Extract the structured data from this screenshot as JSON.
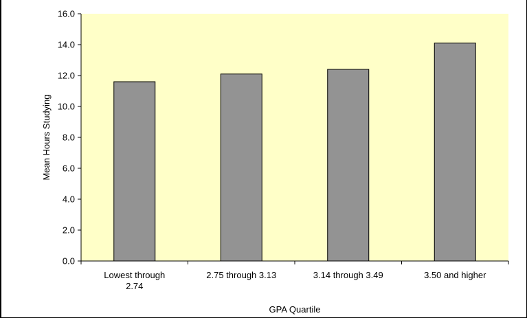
{
  "chart_data": {
    "type": "bar",
    "xlabel": "GPA Quartile",
    "ylabel": "Mean Hours Studying",
    "categories": [
      [
        "Lowest through",
        "2.74"
      ],
      [
        "2.75 through 3.13"
      ],
      [
        "3.14 through 3.49"
      ],
      [
        "3.50 and higher"
      ]
    ],
    "values": [
      11.6,
      12.1,
      12.4,
      14.1
    ],
    "ylim": [
      0,
      16
    ],
    "yticks": [
      "0.0",
      "2.0",
      "4.0",
      "6.0",
      "8.0",
      "10.0",
      "12.0",
      "14.0",
      "16.0"
    ],
    "grid": false,
    "legend": "none",
    "colors": {
      "plot_background": "#ffffc8",
      "bar_fill": "#939393",
      "bar_stroke": "#000000",
      "axis": "#000000"
    }
  }
}
